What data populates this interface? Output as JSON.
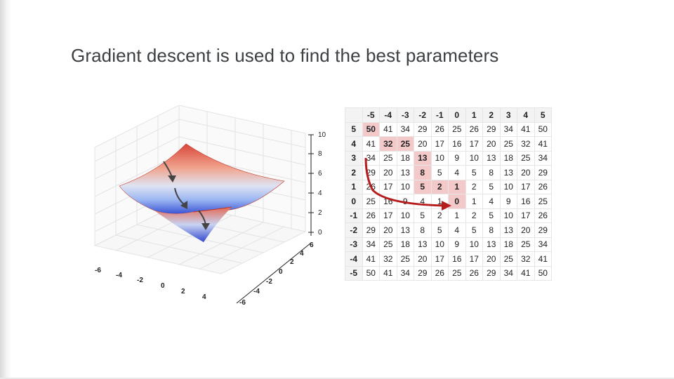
{
  "slide": {
    "title": "Gradient descent is used to find the best parameters"
  },
  "plot": {
    "z_ticks": [
      "0",
      "2",
      "4",
      "6",
      "8",
      "10"
    ],
    "x_ticks": [
      "-6",
      "-4",
      "-2",
      "0",
      "2",
      "4"
    ],
    "y_ticks": [
      "-6",
      "-4",
      "-2",
      "0",
      "2",
      "4",
      "6"
    ]
  },
  "table": {
    "col_headers": [
      "-5",
      "-4",
      "-3",
      "-2",
      "-1",
      "0",
      "1",
      "2",
      "3",
      "4",
      "5"
    ],
    "rows": [
      {
        "label": "5",
        "cells": [
          "50",
          "41",
          "34",
          "29",
          "26",
          "25",
          "26",
          "29",
          "34",
          "41",
          "50"
        ]
      },
      {
        "label": "4",
        "cells": [
          "41",
          "32",
          "25",
          "20",
          "17",
          "16",
          "17",
          "20",
          "25",
          "32",
          "41"
        ]
      },
      {
        "label": "3",
        "cells": [
          "34",
          "25",
          "18",
          "13",
          "10",
          "9",
          "10",
          "13",
          "18",
          "25",
          "34"
        ]
      },
      {
        "label": "2",
        "cells": [
          "29",
          "20",
          "13",
          "8",
          "5",
          "4",
          "5",
          "8",
          "13",
          "20",
          "29"
        ]
      },
      {
        "label": "1",
        "cells": [
          "26",
          "17",
          "10",
          "5",
          "2",
          "1",
          "2",
          "5",
          "10",
          "17",
          "26"
        ]
      },
      {
        "label": "0",
        "cells": [
          "25",
          "16",
          "9",
          "4",
          "1",
          "0",
          "1",
          "4",
          "9",
          "16",
          "25"
        ]
      },
      {
        "label": "-1",
        "cells": [
          "26",
          "17",
          "10",
          "5",
          "2",
          "1",
          "2",
          "5",
          "10",
          "17",
          "26"
        ]
      },
      {
        "label": "-2",
        "cells": [
          "29",
          "20",
          "13",
          "8",
          "5",
          "4",
          "5",
          "8",
          "13",
          "20",
          "29"
        ]
      },
      {
        "label": "-3",
        "cells": [
          "34",
          "25",
          "18",
          "13",
          "10",
          "9",
          "10",
          "13",
          "18",
          "25",
          "34"
        ]
      },
      {
        "label": "-4",
        "cells": [
          "41",
          "32",
          "25",
          "20",
          "17",
          "16",
          "17",
          "20",
          "25",
          "32",
          "41"
        ]
      },
      {
        "label": "-5",
        "cells": [
          "50",
          "41",
          "34",
          "29",
          "26",
          "25",
          "26",
          "29",
          "34",
          "41",
          "50"
        ]
      }
    ],
    "highlighted_cells": [
      [
        0,
        0
      ],
      [
        1,
        1
      ],
      [
        1,
        2
      ],
      [
        2,
        3
      ],
      [
        3,
        3
      ],
      [
        4,
        3
      ],
      [
        4,
        4
      ],
      [
        4,
        5
      ],
      [
        5,
        5
      ]
    ],
    "highlight_color": "#f3c9c9",
    "arrow_color": "#b71c1c"
  }
}
